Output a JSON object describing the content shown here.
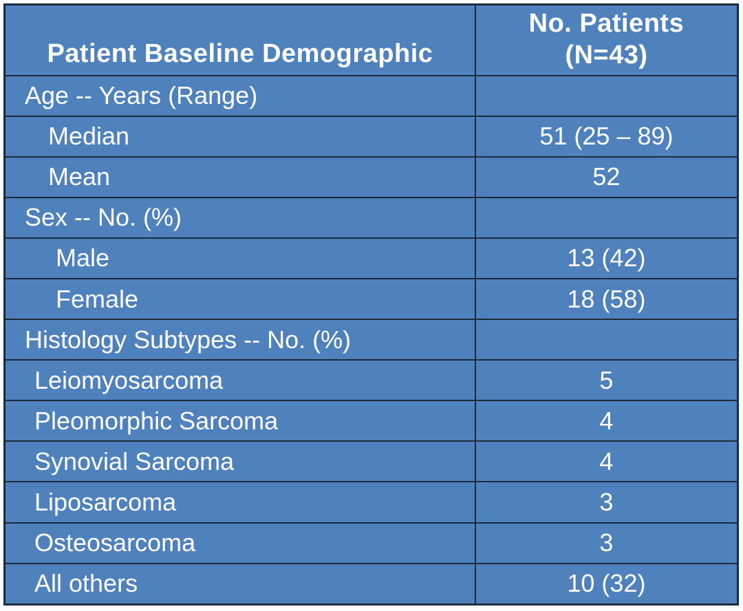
{
  "colors": {
    "cell_fill": "#4f81bd",
    "border": "#1c2a3e",
    "text": "#ffffff",
    "page_bg": "#fbfbfc"
  },
  "chart_data": {
    "type": "table",
    "title": "Patient Baseline Demographic",
    "columns": [
      "Patient Baseline Demographic",
      "No. Patients (N=43)"
    ],
    "n_patients": 43,
    "header": {
      "col1": "Patient Baseline Demographic",
      "col2_line1": "No. Patients",
      "col2_line2": "(N=43)"
    },
    "rows": [
      {
        "label": "Age -- Years (Range)",
        "value": "",
        "level": "category"
      },
      {
        "label": "Median",
        "value": "51 (25 – 89)",
        "level": "sub-age"
      },
      {
        "label": "Mean",
        "value": "52",
        "level": "sub-age"
      },
      {
        "label": "Sex -- No. (%)",
        "value": "",
        "level": "category"
      },
      {
        "label": "Male",
        "value": "13 (42)",
        "level": "sub-sex"
      },
      {
        "label": "Female",
        "value": "18 (58)",
        "level": "sub-sex"
      },
      {
        "label": "Histology Subtypes -- No. (%)",
        "value": "",
        "level": "category"
      },
      {
        "label": "Leiomyosarcoma",
        "value": "5",
        "level": "sub-histology"
      },
      {
        "label": "Pleomorphic Sarcoma",
        "value": "4",
        "level": "sub-histology"
      },
      {
        "label": "Synovial Sarcoma",
        "value": "4",
        "level": "sub-histology"
      },
      {
        "label": "Liposarcoma",
        "value": "3",
        "level": "sub-histology"
      },
      {
        "label": "Osteosarcoma",
        "value": "3",
        "level": "sub-histology"
      },
      {
        "label": "All others",
        "value": "10 (32)",
        "level": "sub-histology"
      }
    ]
  }
}
